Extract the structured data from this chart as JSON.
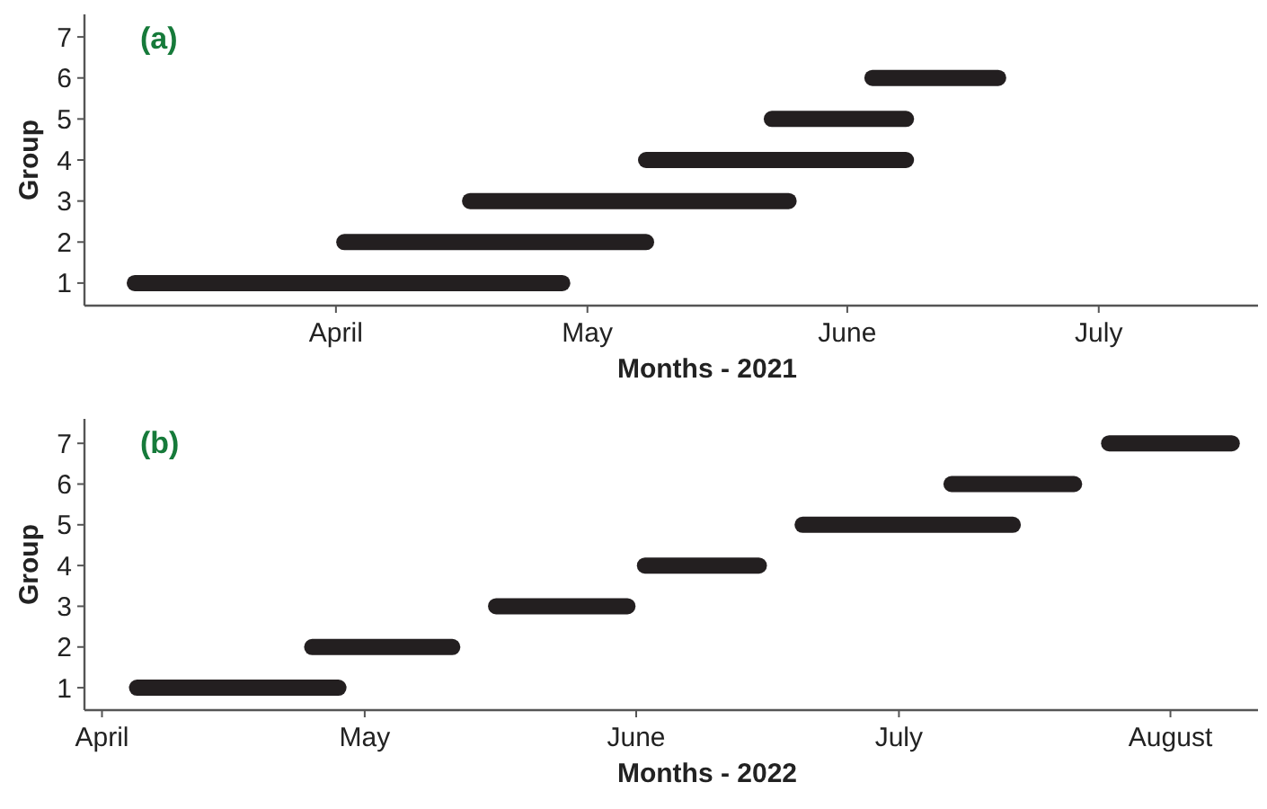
{
  "chart_data": [
    {
      "type": "line",
      "title": "(a)",
      "xlabel": "Months - 2021",
      "ylabel": "Group",
      "xlim": [
        "2021-03-02",
        "2021-07-20"
      ],
      "xticks": [
        {
          "value": "2021-04-01",
          "label": "April"
        },
        {
          "value": "2021-05-01",
          "label": "May"
        },
        {
          "value": "2021-06-01",
          "label": "June"
        },
        {
          "value": "2021-07-01",
          "label": "July"
        }
      ],
      "ylim": [
        0.45,
        7.55
      ],
      "yticks": [
        1,
        2,
        3,
        4,
        5,
        6,
        7
      ],
      "series": [
        {
          "color": "#231f20",
          "x": [
            "2021-03-08",
            "2021-04-28"
          ],
          "values": [
            1,
            1
          ]
        },
        {
          "color": "#231f20",
          "x": [
            "2021-04-02",
            "2021-05-08"
          ],
          "values": [
            2,
            2
          ]
        },
        {
          "color": "#231f20",
          "x": [
            "2021-04-17",
            "2021-05-25"
          ],
          "values": [
            3,
            3
          ]
        },
        {
          "color": "#231f20",
          "x": [
            "2021-05-08",
            "2021-06-08"
          ],
          "values": [
            4,
            4
          ]
        },
        {
          "color": "#231f20",
          "x": [
            "2021-05-23",
            "2021-06-08"
          ],
          "values": [
            5,
            5
          ]
        },
        {
          "color": "#231f20",
          "x": [
            "2021-06-04",
            "2021-06-19"
          ],
          "values": [
            6,
            6
          ]
        }
      ]
    },
    {
      "type": "line",
      "title": "(b)",
      "xlabel": "Months - 2022",
      "ylabel": "Group",
      "xlim": [
        "2022-03-30",
        "2022-08-11"
      ],
      "xticks": [
        {
          "value": "2022-04-01",
          "label": "April"
        },
        {
          "value": "2022-05-01",
          "label": "May"
        },
        {
          "value": "2022-06-01",
          "label": "June"
        },
        {
          "value": "2022-07-01",
          "label": "July"
        },
        {
          "value": "2022-08-01",
          "label": "August"
        }
      ],
      "ylim": [
        0.45,
        7.6
      ],
      "yticks": [
        1,
        2,
        3,
        4,
        5,
        6,
        7
      ],
      "series": [
        {
          "color": "#231f20",
          "x": [
            "2022-04-05",
            "2022-04-28"
          ],
          "values": [
            1,
            1
          ]
        },
        {
          "color": "#231f20",
          "x": [
            "2022-04-25",
            "2022-05-11"
          ],
          "values": [
            2,
            2
          ]
        },
        {
          "color": "#231f20",
          "x": [
            "2022-05-16",
            "2022-05-31"
          ],
          "values": [
            3,
            3
          ]
        },
        {
          "color": "#231f20",
          "x": [
            "2022-06-02",
            "2022-06-15"
          ],
          "values": [
            4,
            4
          ]
        },
        {
          "color": "#231f20",
          "x": [
            "2022-06-20",
            "2022-07-14"
          ],
          "values": [
            5,
            5
          ]
        },
        {
          "color": "#231f20",
          "x": [
            "2022-07-07",
            "2022-07-21"
          ],
          "values": [
            6,
            6
          ]
        },
        {
          "color": "#231f20",
          "x": [
            "2022-07-25",
            "2022-08-08"
          ],
          "values": [
            7,
            7
          ]
        }
      ]
    }
  ]
}
